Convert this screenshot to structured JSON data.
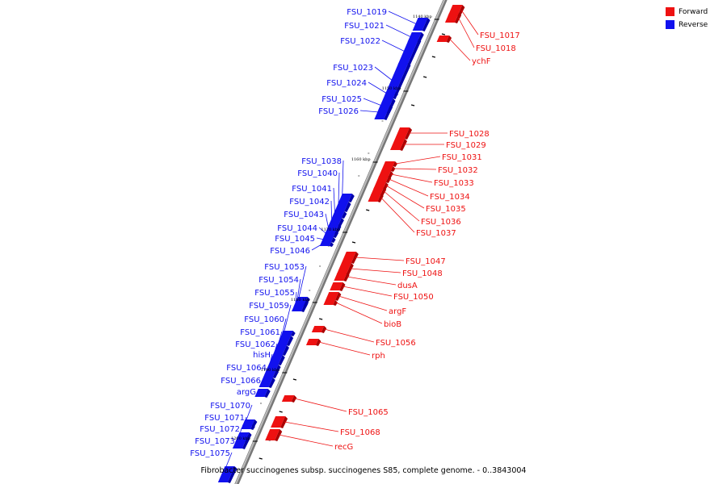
{
  "legend": {
    "forward": "Forward",
    "reverse": "Reverse",
    "forward_color": "#ee1111",
    "reverse_color": "#1111ee"
  },
  "caption": "Fibrobacter succinogenes subsp. succinogenes S85, complete genome. - 0..3843004",
  "ticks": [
    "1140 kbp",
    "1150 kbp",
    "1160 kbp",
    "1170 kbp",
    "1180 kbp",
    "1190 kbp",
    "1200 kbp"
  ],
  "reverse_genes": [
    "FSU_1019",
    "FSU_1021",
    "FSU_1022",
    "FSU_1023",
    "FSU_1024",
    "FSU_1025",
    "FSU_1026",
    "FSU_1038",
    "FSU_1040",
    "FSU_1041",
    "FSU_1042",
    "FSU_1043",
    "FSU_1044",
    "FSU_1045",
    "FSU_1046",
    "FSU_1053",
    "FSU_1054",
    "FSU_1055",
    "FSU_1059",
    "FSU_1060",
    "FSU_1061",
    "FSU_1062",
    "hisH",
    "FSU_1064",
    "FSU_1066",
    "argG",
    "FSU_1070",
    "FSU_1071",
    "FSU_1072",
    "FSU_1073",
    "FSU_1075"
  ],
  "forward_genes": [
    "FSU_1017",
    "FSU_1018",
    "ychF",
    "FSU_1028",
    "FSU_1029",
    "FSU_1031",
    "FSU_1032",
    "FSU_1033",
    "FSU_1034",
    "FSU_1035",
    "FSU_1036",
    "FSU_1037",
    "FSU_1047",
    "FSU_1048",
    "dusA",
    "FSU_1050",
    "argF",
    "bioB",
    "FSU_1056",
    "rph",
    "FSU_1065",
    "FSU_1068",
    "recG"
  ]
}
